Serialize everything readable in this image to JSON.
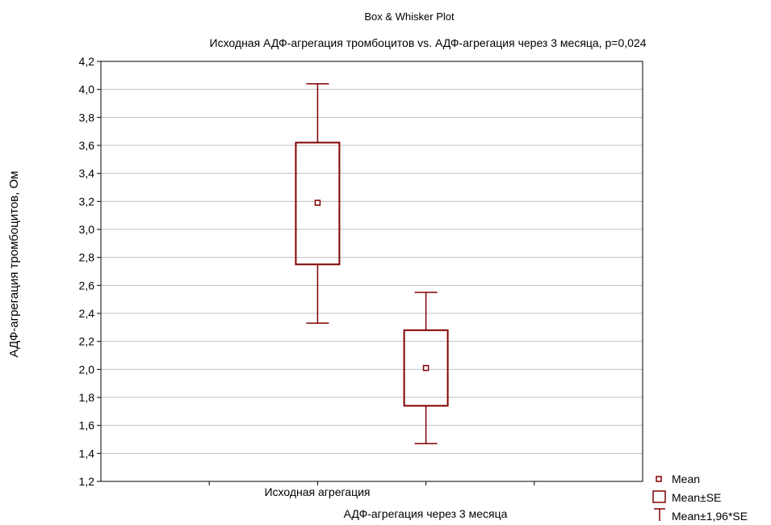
{
  "chart_data": {
    "type": "box",
    "title": "Box & Whisker Plot",
    "subtitle": "Исходная АДФ-агрегация тромбоцитов vs. АДФ-агрегация через 3 месяца, p=0,024",
    "xlabel": "",
    "ylabel": "АДФ-агрегация тромбоцитов, Ом",
    "ylim": [
      1.2,
      4.2
    ],
    "yticks": [
      "1,2",
      "1,4",
      "1,6",
      "1,8",
      "2,0",
      "2,2",
      "2,4",
      "2,6",
      "2,8",
      "3,0",
      "3,2",
      "3,4",
      "3,6",
      "3,8",
      "4,0",
      "4,2"
    ],
    "ytick_values": [
      1.2,
      1.4,
      1.6,
      1.8,
      2.0,
      2.2,
      2.4,
      2.6,
      2.8,
      3.0,
      3.2,
      3.4,
      3.6,
      3.8,
      4.0,
      4.2
    ],
    "grid": true,
    "color": "#800000",
    "categories": [
      "Исходная агрегация",
      "АДФ-агрегация через 3 месяца"
    ],
    "boxes": [
      {
        "category": "Исходная агрегация",
        "mean": 3.19,
        "se_low": 2.75,
        "se_high": 3.62,
        "ci_low": 2.33,
        "ci_high": 4.04
      },
      {
        "category": "АДФ-агрегация через 3 месяца",
        "mean": 2.01,
        "se_low": 1.74,
        "se_high": 2.28,
        "ci_low": 1.47,
        "ci_high": 2.55
      }
    ],
    "legend": {
      "placement": "bottom-right",
      "items": [
        {
          "symbol": "mean",
          "label": "Mean"
        },
        {
          "symbol": "box",
          "label": "Mean±SE"
        },
        {
          "symbol": "whisker",
          "label": "Mean±1,96*SE"
        }
      ]
    }
  }
}
